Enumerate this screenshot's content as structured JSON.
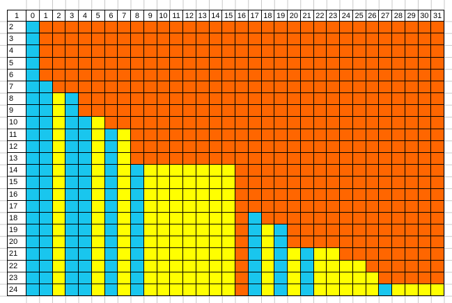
{
  "palette": {
    "O": "#FF6600",
    "B": "#19C6EE",
    "Y": "#FFFF00",
    "W": "#FFFFFF",
    "gridline": "#C8C8C8",
    "border": "#000000"
  },
  "legend_keys": {
    "O": "orange",
    "B": "blue",
    "Y": "yellow"
  },
  "corner_label": "1",
  "column_labels": [
    "0",
    "1",
    "2",
    "3",
    "4",
    "5",
    "6",
    "7",
    "8",
    "9",
    "10",
    "11",
    "12",
    "13",
    "14",
    "15",
    "16",
    "17",
    "18",
    "19",
    "20",
    "21",
    "22",
    "23",
    "24",
    "25",
    "26",
    "27",
    "28",
    "29",
    "30",
    "31"
  ],
  "row_labels": [
    "2",
    "3",
    "4",
    "5",
    "6",
    "7",
    "8",
    "9",
    "10",
    "11",
    "12",
    "13",
    "14",
    "15",
    "16",
    "17",
    "18",
    "19",
    "20",
    "21",
    "22",
    "23",
    "24"
  ],
  "cell_rows": [
    "BOOOOOOOOOOOOOOOOOOOOOOOOOOOOOOO",
    "BOOOOOOOOOOOOOOOOOOOOOOOOOOOOOOO",
    "BOOOOOOOOOOOOOOOOOOOOOOOOOOOOOOO",
    "BOOOOOOOOOOOOOOOOOOOOOOOOOOOOOOO",
    "BOOOOOOOOOOOOOOOOOOOOOOOOOOOOOOO",
    "BBOOOOOOOOOOOOOOOOOOOOOOOOOOOOOO",
    "BBYBOOOOOOOOOOOOOOOOOOOOOOOOOOOO",
    "BBYBOOOOOOOOOOOOOOOOOOOOOOOOOOOO",
    "BBYBBYOOOOOOOOOOOOOOOOOOOOOOOOOO",
    "BBYBBYBYOOOOOOOOOOOOOOOOOOOOOOOO",
    "BBYBBYBYOOOOOOOOOOOOOOOOOOOOOOOO",
    "BBYBBYBYOOOOOOOOOOOOOOOOOOOOOOOO",
    "BBYBBYBYBYYYYYYYOOOOOOOOOOOOOOOO",
    "BBYBBYBYBYYYYYYYOOOOOOOOOOOOOOOO",
    "BBYBBYBYBYYYYYYYOOOOOOOOOOOOOOOO",
    "BBYBBYBYBYYYYYYYOOOOOOOOOOOOOOOO",
    "BBYBBYBYBYYYYYYYOBOOOOOOOOOOOOOO",
    "BBYBBYBYBYYYYYYYOBYBOOOOOOOOOOOO",
    "BBYBBYBYBYYYYYYYOBYBOOOOOOOOOOOO",
    "BBYBBYBYBYYYYYYYOBYBYBYYOOOOOOOO",
    "BBYBBYBYBYYYYYYYOBYBYBYYYYOOOOOO",
    "BBYBBYBYBYYYYYYYOBYBYBYYYYYOOOOO",
    "BBYBBYBYBYYYYYYYOBYBYBYYYYYBYYYY"
  ]
}
